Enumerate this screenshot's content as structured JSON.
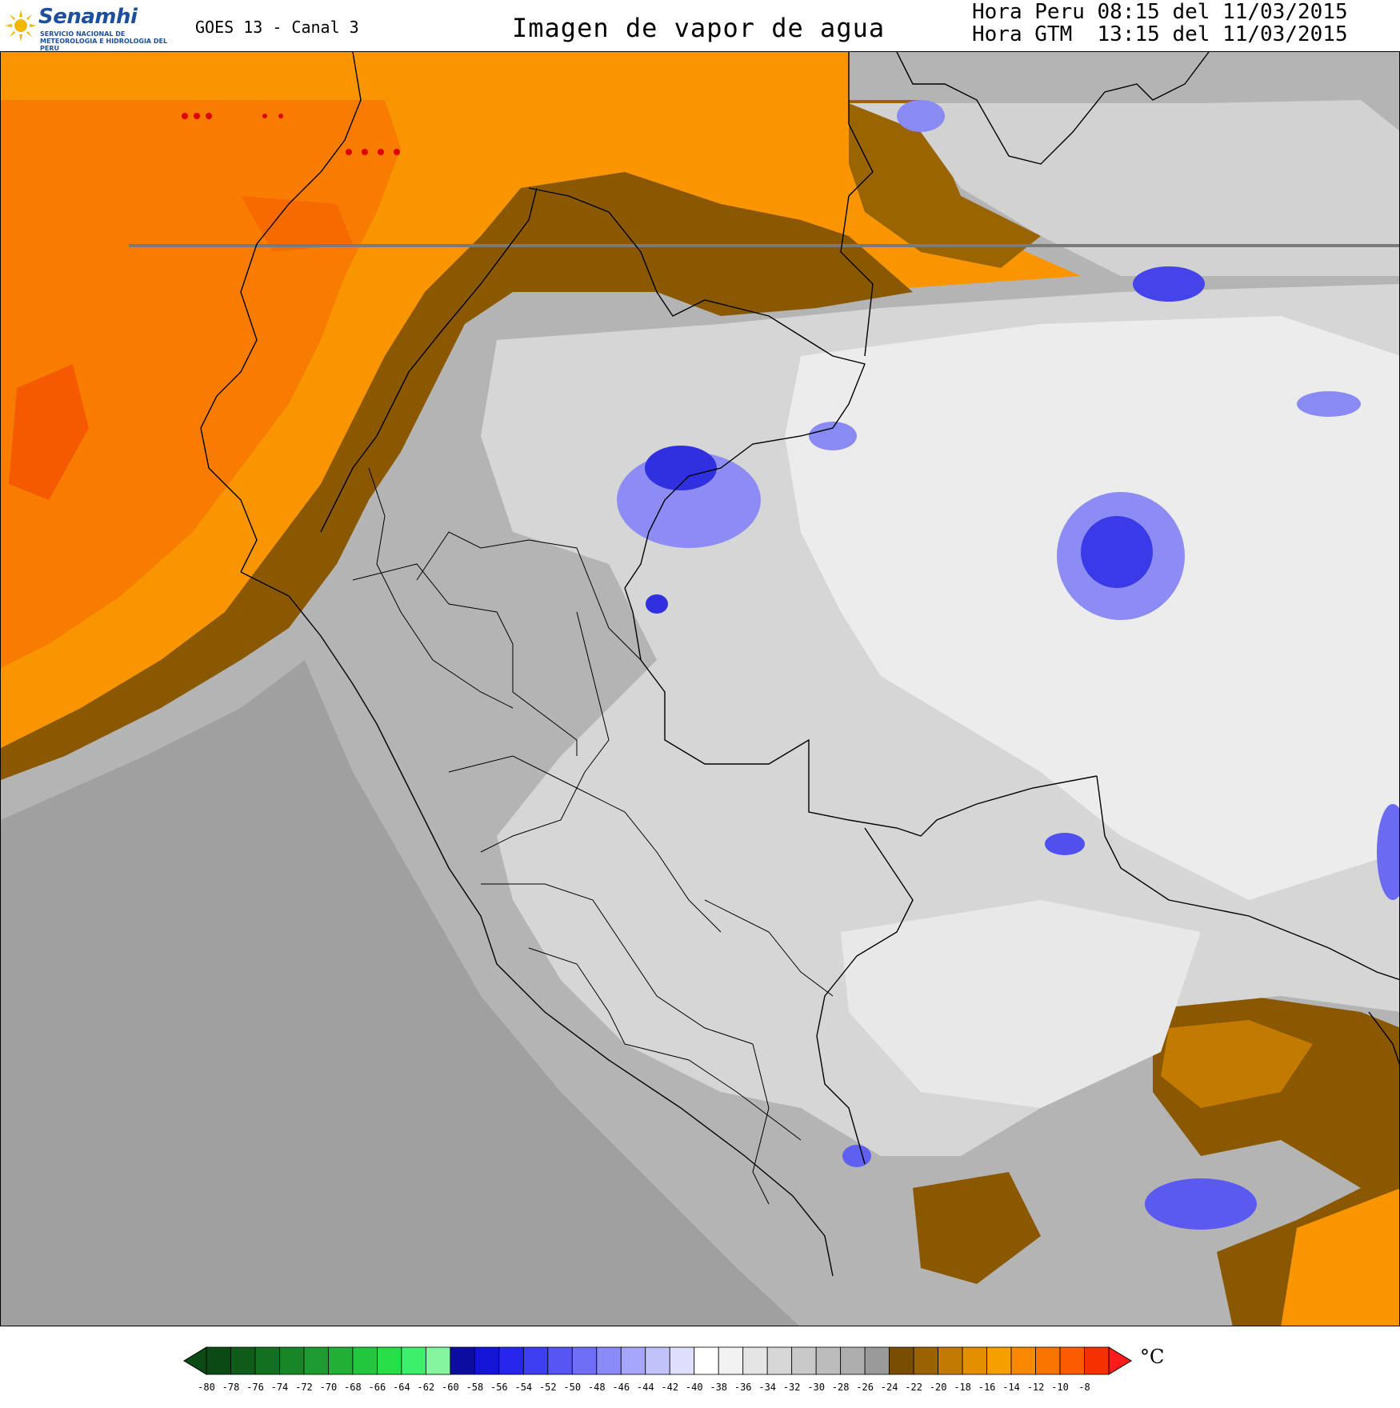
{
  "header": {
    "logo": {
      "name": "Senamhi",
      "subtitle": "SERVICIO NACIONAL DE METEOROLOGIA E HIDROLOGIA DEL PERU"
    },
    "satellite": "GOES 13 - Canal 3",
    "title": "Imagen de vapor de agua",
    "time_peru": "Hora Peru 08:15 del 11/03/2015",
    "time_gmt": "Hora GTM  13:15 del 11/03/2015"
  },
  "legend": {
    "unit": "°C",
    "ticks": [
      "-80",
      "-78",
      "-76",
      "-74",
      "-72",
      "-70",
      "-68",
      "-66",
      "-64",
      "-62",
      "-60",
      "-58",
      "-56",
      "-54",
      "-52",
      "-50",
      "-48",
      "-46",
      "-44",
      "-42",
      "-40",
      "-38",
      "-36",
      "-34",
      "-32",
      "-30",
      "-28",
      "-26",
      "-24",
      "-22",
      "-20",
      "-18",
      "-16",
      "-14",
      "-12",
      "-10",
      "-8"
    ],
    "colors": [
      "#0b4a14",
      "#0f5c1a",
      "#137020",
      "#188527",
      "#1d9b2e",
      "#21b035",
      "#23c73d",
      "#27de48",
      "#3cf06b",
      "#85f59f",
      "#0c0ca0",
      "#1414d8",
      "#2626ee",
      "#3e3ef2",
      "#5656f4",
      "#6e6ef6",
      "#8a8af8",
      "#a6a6fa",
      "#c2c2fb",
      "#dedefd",
      "#ffffff",
      "#f2f2f2",
      "#e5e5e5",
      "#d7d7d7",
      "#c9c9c9",
      "#bcbcbc",
      "#aeaeae",
      "#9a9a9a",
      "#7a4e02",
      "#9a6200",
      "#c27a00",
      "#e48f00",
      "#f6a000",
      "#f98a00",
      "#fa7400",
      "#fb5c00",
      "#f63000"
    ],
    "cap_left_color": "#0b4a14",
    "cap_right_color": "#ff1a1a"
  },
  "map_colors": {
    "ocean_dark": "#9c9c9c",
    "land_gray": "#b0b0b0",
    "light": "#d8d8d8",
    "white": "#f2f2f2",
    "orange_dark": "#f87c00",
    "orange": "#f99500",
    "orange_light": "#f6a800",
    "brown": "#8a5800",
    "brown_mid": "#b57400",
    "blue": "#3030e0",
    "blue_light": "#8c8cf4",
    "red_patch": "#f55a00",
    "border": "#000000"
  }
}
